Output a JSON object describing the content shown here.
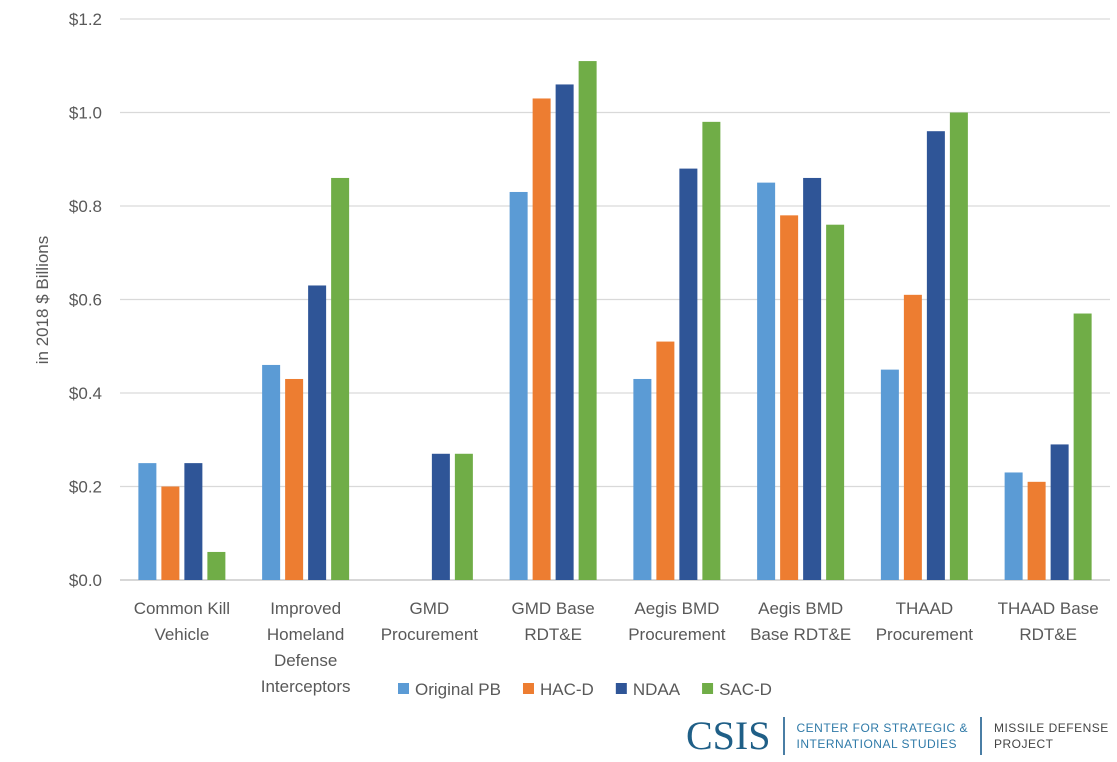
{
  "chart_data": {
    "type": "bar",
    "title": "",
    "ylabel": "in 2018 $ Billions",
    "xlabel": "",
    "ylim": [
      0,
      1.2
    ],
    "yticks": [
      "$0.0",
      "$0.2",
      "$0.4",
      "$0.6",
      "$0.8",
      "$1.0",
      "$1.2"
    ],
    "grid": true,
    "legend_position": "bottom",
    "categories": [
      [
        "Common Kill",
        "Vehicle"
      ],
      [
        "Improved",
        "Homeland",
        "Defense",
        "Interceptors"
      ],
      [
        "GMD",
        "Procurement"
      ],
      [
        "GMD Base",
        "RDT&E"
      ],
      [
        "Aegis BMD",
        "Procurement"
      ],
      [
        "Aegis BMD",
        "Base RDT&E"
      ],
      [
        "THAAD",
        "Procurement"
      ],
      [
        "THAAD Base",
        "RDT&E"
      ]
    ],
    "series": [
      {
        "name": "Original PB",
        "color": "#5B9BD5",
        "values": [
          0.25,
          0.46,
          0,
          0.83,
          0.43,
          0.85,
          0.45,
          0.23
        ]
      },
      {
        "name": "HAC-D",
        "color": "#ED7D31",
        "values": [
          0.2,
          0.43,
          0,
          1.03,
          0.51,
          0.78,
          0.61,
          0.21
        ]
      },
      {
        "name": "NDAA",
        "color": "#2F5597",
        "values": [
          0.25,
          0.63,
          0.27,
          1.06,
          0.88,
          0.86,
          0.96,
          0.29
        ]
      },
      {
        "name": "SAC-D",
        "color": "#70AD47",
        "values": [
          0.06,
          0.86,
          0.27,
          1.11,
          0.98,
          0.76,
          1.0,
          0.57
        ]
      }
    ]
  },
  "logo": {
    "name": "CSIS",
    "org_line1": "CENTER FOR STRATEGIC &",
    "org_line2": "INTERNATIONAL STUDIES",
    "project_line1": "MISSILE DEFENSE",
    "project_line2": "PROJECT"
  }
}
